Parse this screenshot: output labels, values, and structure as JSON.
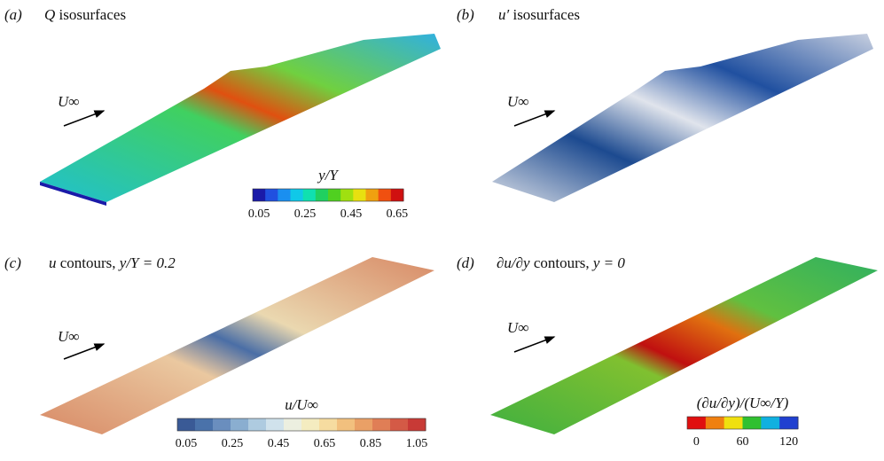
{
  "panels": [
    {
      "label": "(a)",
      "symbol": "Q",
      "text": "isosurfaces",
      "flow": "U∞",
      "colorbar": {
        "title": "y/Y",
        "ticks": [
          "0.05",
          "0.25",
          "0.45",
          "0.65"
        ],
        "colors": [
          "#1a1aa8",
          "#2050e0",
          "#1a8ff0",
          "#10c8e8",
          "#10e0b0",
          "#20d060",
          "#50d020",
          "#a0e010",
          "#e8e010",
          "#f0a010",
          "#f05010",
          "#d01010"
        ]
      }
    },
    {
      "label": "(b)",
      "symbol": "u′",
      "text": "isosurfaces",
      "flow": "U∞"
    },
    {
      "label": "(c)",
      "symbol": "u",
      "text": "contours,",
      "condition": "y/Y = 0.2",
      "flow": "U∞",
      "colorbar": {
        "title": "u/U∞",
        "ticks": [
          "0.05",
          "0.25",
          "0.45",
          "0.65",
          "0.85",
          "1.05"
        ],
        "colors": [
          "#3a5a96",
          "#4a72aa",
          "#6a8ebe",
          "#8aaed0",
          "#aecbe0",
          "#d0e2ec",
          "#ecefe0",
          "#f4ecc0",
          "#f6dca0",
          "#f2c07e",
          "#eaa066",
          "#e07e56",
          "#d45a46",
          "#c83a36"
        ]
      }
    },
    {
      "label": "(d)",
      "symbol": "∂u/∂y",
      "text": "contours,",
      "condition": "y = 0",
      "flow": "U∞",
      "colorbar": {
        "title": "(∂u/∂y)/(U∞/Y)",
        "ticks": [
          "0",
          "60",
          "120"
        ],
        "colors": [
          "#e01010",
          "#f08010",
          "#f0e010",
          "#30c030",
          "#10b0e0",
          "#2040d0"
        ]
      }
    }
  ]
}
